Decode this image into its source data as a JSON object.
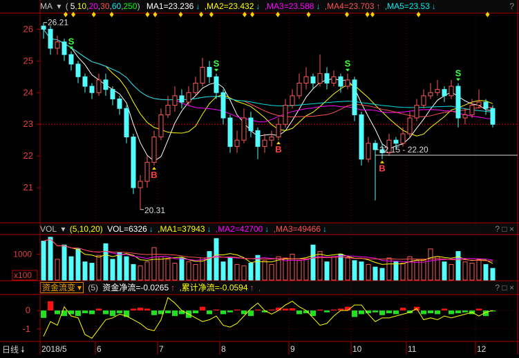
{
  "colors": {
    "up": "#ff5a5a",
    "down": "#54fcfc",
    "ma1": "#ffffff",
    "ma2": "#ffff00",
    "ma3": "#ff00ff",
    "ma4": "#ff5050",
    "ma5": "#00e0e0",
    "border": "#b00000",
    "grid": "#6a0000",
    "flow_pos": "#ff1010",
    "flow_neg": "#20e020",
    "flow_line": "#ffff00"
  },
  "price_header": {
    "indicator": "MA",
    "params_open": "(",
    "p1": "5",
    "p2": "10",
    "p3": "20",
    "p4": "30",
    "p5": "60",
    "p6": "250",
    "params_close": ")",
    "ma1": "MA1=23.236",
    "ma2": ",MA2=23.432",
    "ma3": ",MA3=23.588",
    "ma4": ",MA4=23.703",
    "ma5": ",MA5=23.53",
    "help": "?"
  },
  "vol_header": {
    "indicator": "VOL",
    "params": "(5,10,20)",
    "vol": "VOL=6326",
    "ma1": ",MA1=37943",
    "ma2": ",MA2=42700",
    "ma3": ",MA3=49466",
    "help": "? □ ×"
  },
  "flow_header": {
    "indicator": "资金流变",
    "params": "(5)",
    "net": "资金净流=-0.0265",
    "cum": ",累计净流=-0.0594",
    "tail": ",",
    "help": "? □ ×"
  },
  "period_label": "日线",
  "chart_data": [
    {
      "type": "candlestick",
      "name": "price",
      "ylim": [
        20.0,
        26.4
      ],
      "yticks": [
        21,
        22,
        23,
        24,
        25,
        26
      ],
      "ohlc": [
        [
          26.1,
          26.21,
          25.7,
          26.0
        ],
        [
          26.0,
          26.1,
          25.2,
          25.4
        ],
        [
          25.4,
          25.8,
          25.2,
          25.6
        ],
        [
          25.6,
          25.7,
          25.0,
          25.2
        ],
        [
          25.2,
          25.3,
          24.7,
          24.9
        ],
        [
          24.9,
          25.0,
          24.3,
          24.5
        ],
        [
          24.5,
          24.6,
          24.0,
          24.2
        ],
        [
          24.2,
          24.3,
          23.8,
          24.0
        ],
        [
          24.0,
          24.6,
          23.9,
          24.4
        ],
        [
          24.4,
          24.6,
          23.9,
          24.1
        ],
        [
          24.1,
          24.2,
          23.6,
          23.8
        ],
        [
          23.8,
          23.9,
          23.3,
          23.5
        ],
        [
          23.5,
          23.6,
          22.4,
          22.6
        ],
        [
          22.6,
          22.7,
          20.8,
          21.0
        ],
        [
          21.0,
          21.4,
          20.31,
          21.2
        ],
        [
          21.2,
          22.0,
          21.0,
          21.8
        ],
        [
          21.8,
          22.8,
          21.7,
          22.6
        ],
        [
          22.6,
          23.5,
          22.5,
          23.3
        ],
        [
          23.3,
          23.9,
          23.2,
          23.6
        ],
        [
          23.6,
          24.2,
          23.4,
          23.9
        ],
        [
          23.9,
          24.1,
          23.5,
          23.7
        ],
        [
          23.7,
          24.2,
          23.6,
          24.0
        ],
        [
          24.0,
          24.5,
          23.9,
          24.3
        ],
        [
          24.3,
          25.1,
          24.2,
          24.8
        ],
        [
          24.8,
          25.0,
          24.3,
          24.5
        ],
        [
          24.5,
          24.6,
          23.8,
          24.0
        ],
        [
          24.0,
          24.1,
          23.0,
          23.2
        ],
        [
          23.2,
          23.3,
          22.1,
          22.3
        ],
        [
          22.3,
          22.8,
          22.1,
          22.5
        ],
        [
          22.5,
          23.5,
          22.4,
          23.2
        ],
        [
          23.2,
          23.4,
          22.6,
          22.8
        ],
        [
          22.8,
          22.9,
          21.9,
          22.3
        ],
        [
          22.3,
          22.7,
          22.1,
          22.5
        ],
        [
          22.5,
          22.8,
          22.3,
          22.6
        ],
        [
          22.6,
          23.2,
          22.5,
          23.0
        ],
        [
          23.0,
          23.8,
          22.9,
          23.6
        ],
        [
          23.6,
          24.1,
          23.5,
          23.9
        ],
        [
          23.9,
          24.6,
          23.8,
          24.3
        ],
        [
          24.3,
          24.8,
          24.1,
          24.5
        ],
        [
          24.5,
          24.6,
          24.1,
          24.3
        ],
        [
          24.3,
          25.2,
          24.2,
          24.6
        ],
        [
          24.6,
          24.8,
          24.1,
          24.3
        ],
        [
          24.3,
          24.7,
          24.2,
          24.5
        ],
        [
          24.5,
          24.6,
          24.0,
          24.2
        ],
        [
          24.2,
          24.6,
          24.1,
          24.4
        ],
        [
          24.4,
          24.5,
          23.1,
          23.3
        ],
        [
          23.3,
          23.4,
          21.7,
          21.9
        ],
        [
          21.9,
          22.6,
          21.8,
          22.4
        ],
        [
          22.4,
          22.5,
          20.6,
          22.2
        ],
        [
          22.2,
          22.4,
          21.9,
          22.1
        ],
        [
          22.1,
          22.7,
          22.0,
          22.5
        ],
        [
          22.5,
          22.6,
          22.2,
          22.4
        ],
        [
          22.4,
          22.9,
          22.3,
          22.7
        ],
        [
          22.7,
          23.4,
          22.6,
          23.2
        ],
        [
          23.2,
          23.8,
          23.1,
          23.6
        ],
        [
          23.6,
          24.1,
          23.5,
          23.9
        ],
        [
          23.9,
          24.3,
          23.8,
          24.0
        ],
        [
          24.0,
          24.4,
          23.9,
          24.1
        ],
        [
          24.1,
          24.2,
          23.7,
          23.9
        ],
        [
          23.9,
          24.4,
          23.8,
          24.2
        ],
        [
          24.2,
          24.3,
          22.9,
          23.2
        ],
        [
          23.2,
          23.5,
          23.0,
          23.3
        ],
        [
          23.3,
          23.8,
          23.2,
          23.6
        ],
        [
          23.6,
          24.1,
          23.5,
          23.7
        ],
        [
          23.7,
          23.8,
          23.3,
          23.5
        ],
        [
          23.5,
          23.6,
          22.9,
          23.0
        ]
      ],
      "ma_periods": [
        5,
        10,
        20,
        30,
        60
      ],
      "ref_line": 23.0,
      "annotations": [
        {
          "index": 0,
          "text": "26.21",
          "value": 26.21
        },
        {
          "index": 14,
          "text": "20.31",
          "value": 20.31
        },
        {
          "index": 48,
          "text": "22.15 - 22.20",
          "value": 22.2
        }
      ],
      "signals": [
        {
          "index": 4,
          "type": "S"
        },
        {
          "index": 16,
          "type": "B"
        },
        {
          "index": 25,
          "type": "S"
        },
        {
          "index": 34,
          "type": "B"
        },
        {
          "index": 44,
          "type": "S"
        },
        {
          "index": 49,
          "type": "B"
        },
        {
          "index": 60,
          "type": "S"
        }
      ],
      "marker_indices": [
        10,
        13,
        21,
        28,
        42,
        45,
        55,
        63,
        67,
        80,
        83,
        93,
        105,
        120,
        128,
        130,
        148,
        175
      ]
    },
    {
      "type": "bar",
      "name": "volume",
      "unit_label": "x100",
      "yticks": [
        1000
      ],
      "ylim": [
        0,
        1700
      ],
      "values": [
        1500,
        1650,
        800,
        1350,
        900,
        1200,
        700,
        650,
        950,
        1400,
        800,
        1050,
        900,
        600,
        550,
        700,
        1250,
        900,
        800,
        650,
        850,
        700,
        600,
        850,
        1100,
        1600,
        700,
        850,
        600,
        550,
        650,
        950,
        750,
        600,
        900,
        850,
        1000,
        750,
        800,
        1350,
        1100,
        700,
        900,
        1000,
        850,
        750,
        700,
        600,
        500,
        450,
        850,
        700,
        650,
        900,
        750,
        800,
        1200,
        900,
        700,
        600,
        1100,
        700,
        650,
        800,
        600,
        450
      ]
    },
    {
      "type": "bar+line",
      "name": "fund_flow",
      "ylim": [
        -1.6,
        0.75
      ],
      "yticks": [
        0,
        -1
      ],
      "values": [
        -0.4,
        0.5,
        -0.2,
        -0.3,
        -0.2,
        -0.3,
        -0.15,
        -0.2,
        0.1,
        -0.2,
        -0.3,
        -0.15,
        -0.35,
        0.1,
        0.15,
        0.1,
        -0.25,
        -0.2,
        -0.15,
        -0.3,
        -0.2,
        -0.4,
        -0.15,
        0.2,
        -0.2,
        0.05,
        -0.2,
        -0.1,
        0.05,
        -0.2,
        -0.3,
        0.05,
        -0.1,
        0.05,
        0.15,
        0.1,
        0.12,
        -0.2,
        -0.15,
        -0.3,
        0.05,
        -0.1,
        0.05,
        0.1,
        0.2,
        -0.35,
        -0.2,
        -0.15,
        -0.1,
        -0.25,
        -0.15,
        -0.2,
        0.15,
        -0.15,
        0.2,
        -0.2,
        -0.15,
        -0.2,
        0.1,
        -0.2,
        -0.15,
        -0.1,
        -0.2,
        0.1,
        -0.3,
        -0.05
      ],
      "cumulative": [
        -1.4,
        -0.6,
        -0.8,
        0.2,
        -0.3,
        -0.4,
        -1.3,
        -1.5,
        -1.0,
        -0.5,
        -0.4,
        -0.2,
        -0.3,
        -0.5,
        -0.7,
        -1.0,
        -1.1,
        -0.5,
        0.7,
        0.4,
        0.0,
        -0.2,
        -0.4,
        -0.6,
        -0.5,
        -0.3,
        -0.8,
        -0.9,
        -0.7,
        -0.3,
        0.1,
        0.4,
        0.0,
        -0.2,
        0.0,
        0.3,
        0.5,
        0.2,
        0.0,
        -0.4,
        -0.8,
        -0.7,
        -0.3,
        0.0,
        0.0,
        0.3,
        0.3,
        -0.2,
        -0.6,
        -0.4,
        -0.4,
        -0.3,
        -0.2,
        -0.1,
        0.1,
        -0.5,
        -0.4,
        -0.5,
        -0.3,
        -0.4,
        -0.3,
        -0.2,
        -0.1,
        -0.3,
        -0.1,
        0.0
      ]
    },
    {
      "type": "axis",
      "name": "dates",
      "labels": [
        {
          "index": 0,
          "text": "2018/5"
        },
        {
          "index": 8,
          "text": "6"
        },
        {
          "index": 17,
          "text": "7"
        },
        {
          "index": 26,
          "text": "8"
        },
        {
          "index": 36,
          "text": "9"
        },
        {
          "index": 45,
          "text": "10"
        },
        {
          "index": 53,
          "text": "11"
        },
        {
          "index": 63,
          "text": "12"
        }
      ]
    }
  ]
}
